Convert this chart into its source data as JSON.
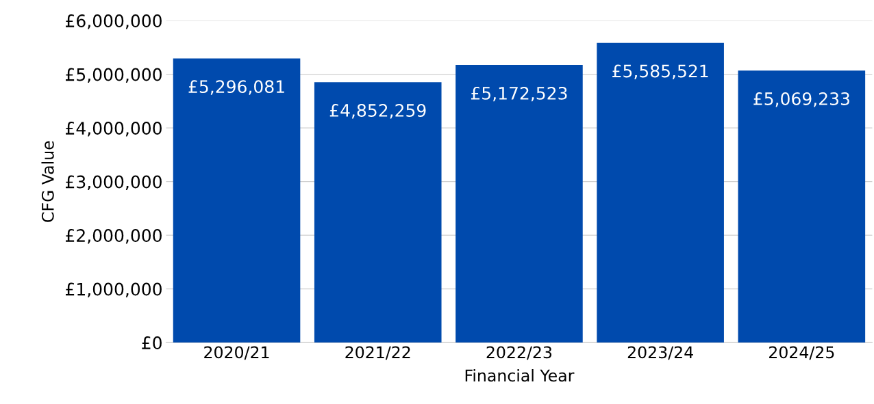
{
  "chart_data": {
    "type": "bar",
    "xlabel": "Financial Year",
    "ylabel": "CFG Value",
    "categories": [
      "2020/21",
      "2021/22",
      "2022/23",
      "2023/24",
      "2024/25"
    ],
    "values": [
      5296081,
      4852259,
      5172523,
      5585521,
      5069233
    ],
    "value_labels": [
      "£5,296,081",
      "£4,852,259",
      "£5,172,523",
      "£5,585,521",
      "£5,069,233"
    ],
    "color": "#004aad",
    "ylim": [
      0,
      6000000
    ],
    "yticks": [
      {
        "value": 0,
        "label": "£0"
      },
      {
        "value": 1000000,
        "label": "£1,000,000"
      },
      {
        "value": 2000000,
        "label": "£2,000,000"
      },
      {
        "value": 3000000,
        "label": "£3,000,000"
      },
      {
        "value": 4000000,
        "label": "£4,000,000"
      },
      {
        "value": 5000000,
        "label": "£5,000,000"
      },
      {
        "value": 6000000,
        "label": "£6,000,000"
      }
    ],
    "grid": "y",
    "legend": false
  }
}
